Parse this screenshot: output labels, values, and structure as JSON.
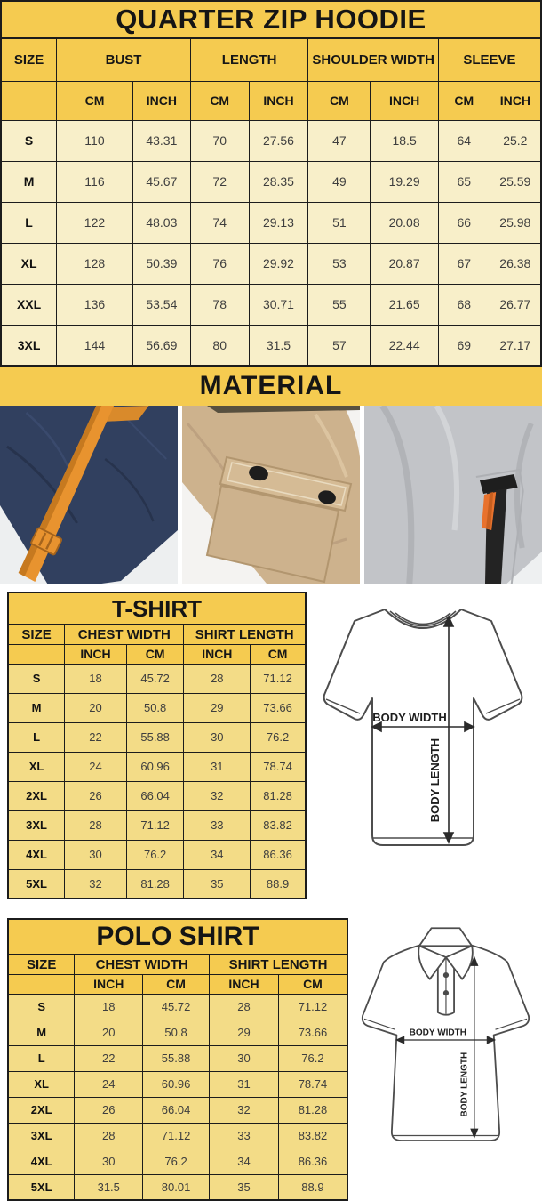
{
  "colors": {
    "gold_header": "#F5CB50",
    "cream_cell": "#F8EFC9",
    "light_gold_cell": "#F3DC87",
    "table_border": "#1c1c1c",
    "text_dark": "#161616",
    "text_value": "#3e3e3e",
    "navy_fabric": "#31405f",
    "orange_drawcord": "#e8932f",
    "khaki_fabric": "#cdb28d",
    "gray_fabric": "#c2c4c8"
  },
  "hoodie": {
    "title": "QUARTER ZIP HOODIE",
    "groups": [
      "SIZE",
      "BUST",
      "LENGTH",
      "SHOULDER WIDTH",
      "SLEEVE"
    ],
    "units": [
      "CM",
      "INCH",
      "CM",
      "INCH",
      "CM",
      "INCH",
      "CM",
      "INCH"
    ],
    "rows": [
      {
        "label": "S",
        "values": [
          "110",
          "43.31",
          "70",
          "27.56",
          "47",
          "18.5",
          "64",
          "25.2"
        ]
      },
      {
        "label": "M",
        "values": [
          "116",
          "45.67",
          "72",
          "28.35",
          "49",
          "19.29",
          "65",
          "25.59"
        ]
      },
      {
        "label": "L",
        "values": [
          "122",
          "48.03",
          "74",
          "29.13",
          "51",
          "20.08",
          "66",
          "25.98"
        ]
      },
      {
        "label": "XL",
        "values": [
          "128",
          "50.39",
          "76",
          "29.92",
          "53",
          "20.87",
          "67",
          "26.38"
        ]
      },
      {
        "label": "XXL",
        "values": [
          "136",
          "53.54",
          "78",
          "30.71",
          "55",
          "21.65",
          "68",
          "26.77"
        ]
      },
      {
        "label": "3XL",
        "values": [
          "144",
          "56.69",
          "80",
          "31.5",
          "57",
          "22.44",
          "69",
          "27.17"
        ]
      }
    ]
  },
  "material": {
    "title": "MATERIAL",
    "photos": [
      "navy-fleece-orange-drawcord",
      "khaki-snap-flap-pocket",
      "gray-fleece-zip-pocket"
    ]
  },
  "tshirt": {
    "title": "T-SHIRT",
    "groups": [
      "SIZE",
      "CHEST WIDTH",
      "SHIRT LENGTH"
    ],
    "units": [
      "INCH",
      "CM",
      "INCH",
      "CM"
    ],
    "rows": [
      {
        "label": "S",
        "values": [
          "18",
          "45.72",
          "28",
          "71.12"
        ]
      },
      {
        "label": "M",
        "values": [
          "20",
          "50.8",
          "29",
          "73.66"
        ]
      },
      {
        "label": "L",
        "values": [
          "22",
          "55.88",
          "30",
          "76.2"
        ]
      },
      {
        "label": "XL",
        "values": [
          "24",
          "60.96",
          "31",
          "78.74"
        ]
      },
      {
        "label": "2XL",
        "values": [
          "26",
          "66.04",
          "32",
          "81.28"
        ]
      },
      {
        "label": "3XL",
        "values": [
          "28",
          "71.12",
          "33",
          "83.82"
        ]
      },
      {
        "label": "4XL",
        "values": [
          "30",
          "76.2",
          "34",
          "86.36"
        ]
      },
      {
        "label": "5XL",
        "values": [
          "32",
          "81.28",
          "35",
          "88.9"
        ]
      }
    ]
  },
  "polo": {
    "title": "POLO SHIRT",
    "groups": [
      "SIZE",
      "CHEST WIDTH",
      "SHIRT LENGTH"
    ],
    "units": [
      "INCH",
      "CM",
      "INCH",
      "CM"
    ],
    "rows": [
      {
        "label": "S",
        "values": [
          "18",
          "45.72",
          "28",
          "71.12"
        ]
      },
      {
        "label": "M",
        "values": [
          "20",
          "50.8",
          "29",
          "73.66"
        ]
      },
      {
        "label": "L",
        "values": [
          "22",
          "55.88",
          "30",
          "76.2"
        ]
      },
      {
        "label": "XL",
        "values": [
          "24",
          "60.96",
          "31",
          "78.74"
        ]
      },
      {
        "label": "2XL",
        "values": [
          "26",
          "66.04",
          "32",
          "81.28"
        ]
      },
      {
        "label": "3XL",
        "values": [
          "28",
          "71.12",
          "33",
          "83.82"
        ]
      },
      {
        "label": "4XL",
        "values": [
          "30",
          "76.2",
          "34",
          "86.36"
        ]
      },
      {
        "label": "5XL",
        "values": [
          "31.5",
          "80.01",
          "35",
          "88.9"
        ]
      }
    ]
  },
  "diagram": {
    "body_width": "BODY WIDTH",
    "body_length": "BODY LENGTH"
  }
}
